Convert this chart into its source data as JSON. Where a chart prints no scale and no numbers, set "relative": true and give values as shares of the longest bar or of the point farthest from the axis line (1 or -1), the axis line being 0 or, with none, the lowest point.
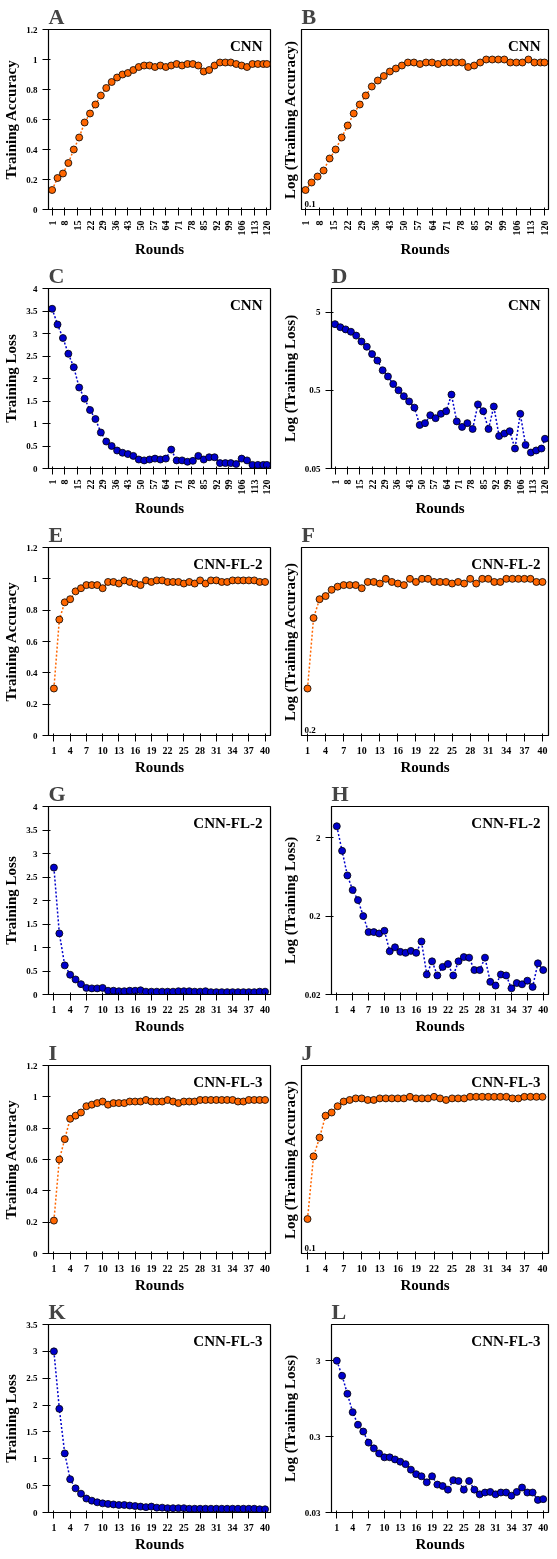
{
  "chart_data": [
    {
      "type": "line",
      "title": "CNN",
      "annotations": [
        "A"
      ],
      "xlabel": "Rounds",
      "ylabel": "Training Accuracy",
      "marker": "circle",
      "line_style": "dotted",
      "xlim": [
        -1,
        122
      ],
      "xticks": [
        1,
        8,
        15,
        22,
        29,
        36,
        43,
        50,
        57,
        64,
        71,
        78,
        85,
        92,
        99,
        106,
        113,
        120
      ],
      "ylim": [
        0,
        1.2
      ],
      "yticks": [
        0,
        0.2,
        0.4,
        0.6,
        0.8,
        1,
        1.2
      ],
      "series": [
        {
          "color": "#ff6600",
          "x": [
            1,
            4,
            7,
            10,
            13,
            16,
            19,
            22,
            25,
            28,
            31,
            34,
            37,
            40,
            43,
            46,
            49,
            52,
            55,
            58,
            61,
            64,
            67,
            70,
            73,
            76,
            79,
            82,
            85,
            88,
            91,
            94,
            97,
            100,
            103,
            106,
            109,
            112,
            115,
            118,
            120
          ],
          "values": [
            0.13,
            0.21,
            0.24,
            0.31,
            0.4,
            0.48,
            0.58,
            0.64,
            0.7,
            0.76,
            0.81,
            0.85,
            0.88,
            0.9,
            0.91,
            0.93,
            0.95,
            0.96,
            0.96,
            0.95,
            0.96,
            0.95,
            0.96,
            0.97,
            0.96,
            0.97,
            0.97,
            0.96,
            0.92,
            0.93,
            0.96,
            0.98,
            0.98,
            0.98,
            0.97,
            0.96,
            0.95,
            0.97,
            0.97,
            0.97,
            0.97
          ]
        }
      ]
    },
    {
      "type": "line",
      "title": "CNN",
      "annotations": [
        "B",
        "0.1"
      ],
      "xlabel": "Rounds",
      "ylabel": "Log (Training Accuracy)",
      "marker": "circle",
      "line_style": "dotted",
      "relative": true,
      "xlim": [
        -1,
        122
      ],
      "xticks": [
        1,
        8,
        15,
        22,
        29,
        36,
        43,
        50,
        57,
        64,
        71,
        78,
        85,
        92,
        99,
        106,
        113,
        120
      ],
      "series": [
        {
          "color": "#ff6600",
          "x": [
            1,
            4,
            7,
            10,
            13,
            16,
            19,
            22,
            25,
            28,
            31,
            34,
            37,
            40,
            43,
            46,
            49,
            52,
            55,
            58,
            61,
            64,
            67,
            70,
            73,
            76,
            79,
            82,
            85,
            88,
            91,
            94,
            97,
            100,
            103,
            106,
            109,
            112,
            115,
            118,
            120
          ],
          "values": [
            0.13,
            0.18,
            0.22,
            0.26,
            0.34,
            0.4,
            0.48,
            0.56,
            0.64,
            0.7,
            0.76,
            0.82,
            0.86,
            0.89,
            0.92,
            0.94,
            0.96,
            0.98,
            0.98,
            0.97,
            0.98,
            0.98,
            0.97,
            0.98,
            0.98,
            0.98,
            0.98,
            0.95,
            0.96,
            0.98,
            1.0,
            1.0,
            1.0,
            1.0,
            0.98,
            0.98,
            0.98,
            1.0,
            0.98,
            0.98,
            0.98
          ]
        }
      ]
    },
    {
      "type": "line",
      "title": "CNN",
      "annotations": [
        "C"
      ],
      "xlabel": "Rounds",
      "ylabel": "Training Loss",
      "marker": "circle",
      "line_style": "dotted",
      "xlim": [
        -1,
        122
      ],
      "xticks": [
        1,
        8,
        15,
        22,
        29,
        36,
        43,
        50,
        57,
        64,
        71,
        78,
        85,
        92,
        99,
        106,
        113,
        120
      ],
      "ylim": [
        0,
        4
      ],
      "yticks": [
        0,
        0.5,
        1,
        1.5,
        2,
        2.5,
        3,
        3.5,
        4
      ],
      "series": [
        {
          "color": "#0000cc",
          "x": [
            1,
            4,
            7,
            10,
            13,
            16,
            19,
            22,
            25,
            28,
            31,
            34,
            37,
            40,
            43,
            46,
            49,
            52,
            55,
            58,
            61,
            64,
            67,
            70,
            73,
            76,
            79,
            82,
            85,
            88,
            91,
            94,
            97,
            100,
            103,
            106,
            109,
            112,
            115,
            118,
            120
          ],
          "values": [
            3.55,
            3.2,
            2.9,
            2.55,
            2.25,
            1.8,
            1.55,
            1.3,
            1.1,
            0.8,
            0.6,
            0.5,
            0.4,
            0.35,
            0.32,
            0.28,
            0.2,
            0.18,
            0.2,
            0.22,
            0.2,
            0.22,
            0.42,
            0.18,
            0.18,
            0.15,
            0.17,
            0.28,
            0.2,
            0.25,
            0.25,
            0.12,
            0.12,
            0.12,
            0.1,
            0.22,
            0.18,
            0.08,
            0.08,
            0.08,
            0.08
          ]
        }
      ]
    },
    {
      "type": "line",
      "title": "CNN",
      "annotations": [
        "D"
      ],
      "xlabel": "Rounds",
      "ylabel": "Log (Training Loss)",
      "marker": "circle",
      "line_style": "dotted",
      "log": "y",
      "xlim": [
        -1,
        122
      ],
      "xticks": [
        1,
        8,
        15,
        22,
        29,
        36,
        43,
        50,
        57,
        64,
        71,
        78,
        85,
        92,
        99,
        106,
        113,
        120
      ],
      "ylim": [
        0.05,
        10
      ],
      "yticks": [
        0.05,
        0.5,
        5
      ],
      "series": [
        {
          "color": "#0000cc",
          "x": [
            1,
            4,
            7,
            10,
            13,
            16,
            19,
            22,
            25,
            28,
            31,
            34,
            37,
            40,
            43,
            46,
            49,
            52,
            55,
            58,
            61,
            64,
            67,
            70,
            73,
            76,
            79,
            82,
            85,
            88,
            91,
            94,
            97,
            100,
            103,
            106,
            109,
            112,
            115,
            118,
            120
          ],
          "values": [
            3.5,
            3.2,
            3.0,
            2.8,
            2.5,
            2.1,
            1.8,
            1.45,
            1.2,
            0.9,
            0.75,
            0.6,
            0.5,
            0.42,
            0.36,
            0.3,
            0.18,
            0.19,
            0.24,
            0.22,
            0.25,
            0.27,
            0.44,
            0.2,
            0.17,
            0.19,
            0.16,
            0.33,
            0.27,
            0.16,
            0.31,
            0.13,
            0.14,
            0.15,
            0.09,
            0.25,
            0.1,
            0.08,
            0.085,
            0.09,
            0.12
          ]
        }
      ]
    },
    {
      "type": "line",
      "title": "CNN-FL-2",
      "annotations": [
        "E"
      ],
      "xlabel": "Rounds",
      "ylabel": "Training Accuracy",
      "marker": "circle",
      "line_style": "dotted",
      "xlim": [
        0,
        41
      ],
      "xticks": [
        1,
        4,
        7,
        10,
        13,
        16,
        19,
        22,
        25,
        28,
        31,
        34,
        37,
        40
      ],
      "ylim": [
        0,
        1.2
      ],
      "yticks": [
        0,
        0.2,
        0.4,
        0.6,
        0.8,
        1,
        1.2
      ],
      "series": [
        {
          "color": "#ff6600",
          "x": [
            1,
            2,
            3,
            4,
            5,
            6,
            7,
            8,
            9,
            10,
            11,
            12,
            13,
            14,
            15,
            16,
            17,
            18,
            19,
            20,
            21,
            22,
            23,
            24,
            25,
            26,
            27,
            28,
            29,
            30,
            31,
            32,
            33,
            34,
            35,
            36,
            37,
            38,
            39,
            40
          ],
          "values": [
            0.3,
            0.74,
            0.85,
            0.87,
            0.92,
            0.94,
            0.96,
            0.96,
            0.96,
            0.94,
            0.98,
            0.98,
            0.97,
            0.99,
            0.98,
            0.97,
            0.96,
            0.99,
            0.98,
            0.99,
            0.99,
            0.98,
            0.98,
            0.98,
            0.97,
            0.98,
            0.97,
            0.99,
            0.97,
            0.99,
            0.99,
            0.98,
            0.98,
            0.99,
            0.99,
            0.99,
            0.99,
            0.99,
            0.98,
            0.98
          ]
        }
      ]
    },
    {
      "type": "line",
      "title": "CNN-FL-2",
      "annotations": [
        "F",
        "0.2"
      ],
      "xlabel": "Rounds",
      "ylabel": "Log (Training Accuracy)",
      "marker": "circle",
      "line_style": "dotted",
      "relative": true,
      "xlim": [
        0,
        41
      ],
      "xticks": [
        1,
        4,
        7,
        10,
        13,
        16,
        19,
        22,
        25,
        28,
        31,
        34,
        37,
        40
      ],
      "series": [
        {
          "color": "#ff6600",
          "x": [
            1,
            2,
            3,
            4,
            5,
            6,
            7,
            8,
            9,
            10,
            11,
            12,
            13,
            14,
            15,
            16,
            17,
            18,
            19,
            20,
            21,
            22,
            23,
            24,
            25,
            26,
            27,
            28,
            29,
            30,
            31,
            32,
            33,
            34,
            35,
            36,
            37,
            38,
            39,
            40
          ],
          "values": [
            0.3,
            0.75,
            0.87,
            0.89,
            0.93,
            0.95,
            0.96,
            0.96,
            0.96,
            0.94,
            0.98,
            0.98,
            0.97,
            1.0,
            0.98,
            0.97,
            0.96,
            1.0,
            0.98,
            1.0,
            1.0,
            0.98,
            0.98,
            0.98,
            0.97,
            0.98,
            0.97,
            1.0,
            0.97,
            1.0,
            1.0,
            0.98,
            0.98,
            1.0,
            1.0,
            1.0,
            1.0,
            1.0,
            0.98,
            0.98
          ]
        }
      ]
    },
    {
      "type": "line",
      "title": "CNN-FL-2",
      "annotations": [
        "G"
      ],
      "xlabel": "Rounds",
      "ylabel": "Training Loss",
      "marker": "circle",
      "line_style": "dotted",
      "xlim": [
        0,
        41
      ],
      "xticks": [
        1,
        4,
        7,
        10,
        13,
        16,
        19,
        22,
        25,
        28,
        31,
        34,
        37,
        40
      ],
      "ylim": [
        0,
        4
      ],
      "yticks": [
        0,
        0.5,
        1,
        1.5,
        2,
        2.5,
        3,
        3.5,
        4
      ],
      "series": [
        {
          "color": "#0000cc",
          "x": [
            1,
            2,
            3,
            4,
            5,
            6,
            7,
            8,
            9,
            10,
            11,
            12,
            13,
            14,
            15,
            16,
            17,
            18,
            19,
            20,
            21,
            22,
            23,
            24,
            25,
            26,
            27,
            28,
            29,
            30,
            31,
            32,
            33,
            34,
            35,
            36,
            37,
            38,
            39,
            40
          ],
          "values": [
            2.7,
            1.3,
            0.62,
            0.42,
            0.32,
            0.22,
            0.14,
            0.13,
            0.13,
            0.14,
            0.08,
            0.08,
            0.07,
            0.07,
            0.08,
            0.08,
            0.09,
            0.06,
            0.06,
            0.06,
            0.06,
            0.06,
            0.06,
            0.07,
            0.07,
            0.07,
            0.06,
            0.06,
            0.07,
            0.05,
            0.05,
            0.05,
            0.05,
            0.05,
            0.05,
            0.05,
            0.05,
            0.05,
            0.06,
            0.06
          ]
        }
      ]
    },
    {
      "type": "line",
      "title": "CNN-FL-2",
      "annotations": [
        "H"
      ],
      "xlabel": "Rounds",
      "ylabel": "Log (Training Loss)",
      "marker": "circle",
      "line_style": "dotted",
      "log": "y",
      "xlim": [
        0,
        41
      ],
      "xticks": [
        1,
        4,
        7,
        10,
        13,
        16,
        19,
        22,
        25,
        28,
        31,
        34,
        37,
        40
      ],
      "ylim": [
        0.02,
        5
      ],
      "yticks": [
        0.02,
        0.2,
        2
      ],
      "series": [
        {
          "color": "#0000cc",
          "x": [
            1,
            2,
            3,
            4,
            5,
            6,
            7,
            8,
            9,
            10,
            11,
            12,
            13,
            14,
            15,
            16,
            17,
            18,
            19,
            20,
            21,
            22,
            23,
            24,
            25,
            26,
            27,
            28,
            29,
            30,
            31,
            32,
            33,
            34,
            35,
            36,
            37,
            38,
            39,
            40
          ],
          "values": [
            2.8,
            1.36,
            0.66,
            0.43,
            0.32,
            0.2,
            0.125,
            0.125,
            0.12,
            0.13,
            0.071,
            0.08,
            0.07,
            0.068,
            0.072,
            0.068,
            0.095,
            0.036,
            0.053,
            0.035,
            0.045,
            0.049,
            0.035,
            0.053,
            0.06,
            0.059,
            0.041,
            0.041,
            0.059,
            0.029,
            0.026,
            0.036,
            0.035,
            0.024,
            0.028,
            0.027,
            0.03,
            0.025,
            0.05,
            0.041
          ]
        }
      ]
    },
    {
      "type": "line",
      "title": "CNN-FL-3",
      "annotations": [
        "I"
      ],
      "xlabel": "Rounds",
      "ylabel": "Training Accuracy",
      "marker": "circle",
      "line_style": "dotted",
      "xlim": [
        0,
        41
      ],
      "xticks": [
        1,
        4,
        7,
        10,
        13,
        16,
        19,
        22,
        25,
        28,
        31,
        34,
        37,
        40
      ],
      "ylim": [
        0,
        1.2
      ],
      "yticks": [
        0,
        0.2,
        0.4,
        0.6,
        0.8,
        1,
        1.2
      ],
      "series": [
        {
          "color": "#ff6600",
          "x": [
            1,
            2,
            3,
            4,
            5,
            6,
            7,
            8,
            9,
            10,
            11,
            12,
            13,
            14,
            15,
            16,
            17,
            18,
            19,
            20,
            21,
            22,
            23,
            24,
            25,
            26,
            27,
            28,
            29,
            30,
            31,
            32,
            33,
            34,
            35,
            36,
            37,
            38,
            39,
            40
          ],
          "values": [
            0.21,
            0.6,
            0.73,
            0.86,
            0.88,
            0.9,
            0.94,
            0.95,
            0.96,
            0.97,
            0.95,
            0.96,
            0.96,
            0.96,
            0.97,
            0.97,
            0.97,
            0.98,
            0.97,
            0.97,
            0.97,
            0.98,
            0.97,
            0.96,
            0.97,
            0.97,
            0.97,
            0.98,
            0.98,
            0.98,
            0.98,
            0.98,
            0.98,
            0.98,
            0.97,
            0.97,
            0.98,
            0.98,
            0.98,
            0.98
          ]
        }
      ]
    },
    {
      "type": "line",
      "title": "CNN-FL-3",
      "annotations": [
        "J",
        "0.1"
      ],
      "xlabel": "Rounds",
      "ylabel": "Log (Training Accuracy)",
      "marker": "circle",
      "line_style": "dotted",
      "relative": true,
      "xlim": [
        0,
        41
      ],
      "xticks": [
        1,
        4,
        7,
        10,
        13,
        16,
        19,
        22,
        25,
        28,
        31,
        34,
        37,
        40
      ],
      "series": [
        {
          "color": "#ff6600",
          "x": [
            1,
            2,
            3,
            4,
            5,
            6,
            7,
            8,
            9,
            10,
            11,
            12,
            13,
            14,
            15,
            16,
            17,
            18,
            19,
            20,
            21,
            22,
            23,
            24,
            25,
            26,
            27,
            28,
            29,
            30,
            31,
            32,
            33,
            34,
            35,
            36,
            37,
            38,
            39,
            40
          ],
          "values": [
            0.22,
            0.62,
            0.74,
            0.88,
            0.9,
            0.94,
            0.97,
            0.98,
            0.99,
            0.99,
            0.98,
            0.98,
            0.99,
            0.99,
            0.99,
            0.99,
            0.99,
            1.0,
            0.99,
            0.99,
            0.99,
            1.0,
            0.99,
            0.98,
            0.99,
            0.99,
            0.99,
            1.0,
            1.0,
            1.0,
            1.0,
            1.0,
            1.0,
            1.0,
            0.99,
            0.99,
            1.0,
            1.0,
            1.0,
            1.0
          ]
        }
      ]
    },
    {
      "type": "line",
      "title": "CNN-FL-3",
      "annotations": [
        "K"
      ],
      "xlabel": "Rounds",
      "ylabel": "Training Loss",
      "marker": "circle",
      "line_style": "dotted",
      "xlim": [
        0,
        41
      ],
      "xticks": [
        1,
        4,
        7,
        10,
        13,
        16,
        19,
        22,
        25,
        28,
        31,
        34,
        37,
        40
      ],
      "ylim": [
        0,
        3.5
      ],
      "yticks": [
        0,
        0.5,
        1,
        1.5,
        2,
        2.5,
        3,
        3.5
      ],
      "series": [
        {
          "color": "#0000cc",
          "x": [
            1,
            2,
            3,
            4,
            5,
            6,
            7,
            8,
            9,
            10,
            11,
            12,
            13,
            14,
            15,
            16,
            17,
            18,
            19,
            20,
            21,
            22,
            23,
            24,
            25,
            26,
            27,
            28,
            29,
            30,
            31,
            32,
            33,
            34,
            35,
            36,
            37,
            38,
            39,
            40
          ],
          "values": [
            3.0,
            1.93,
            1.1,
            0.62,
            0.45,
            0.35,
            0.26,
            0.22,
            0.19,
            0.17,
            0.16,
            0.15,
            0.14,
            0.14,
            0.13,
            0.12,
            0.11,
            0.1,
            0.11,
            0.09,
            0.09,
            0.08,
            0.08,
            0.08,
            0.08,
            0.07,
            0.07,
            0.07,
            0.07,
            0.07,
            0.07,
            0.07,
            0.07,
            0.07,
            0.07,
            0.07,
            0.07,
            0.07,
            0.06,
            0.06
          ]
        }
      ]
    },
    {
      "type": "line",
      "title": "CNN-FL-3",
      "annotations": [
        "L"
      ],
      "xlabel": "Rounds",
      "ylabel": "Log (Training Loss)",
      "marker": "circle",
      "line_style": "dotted",
      "log": "y",
      "xlim": [
        0,
        41
      ],
      "xticks": [
        1,
        4,
        7,
        10,
        13,
        16,
        19,
        22,
        25,
        28,
        31,
        34,
        37,
        40
      ],
      "ylim": [
        0.03,
        9
      ],
      "yticks": [
        0.03,
        0.3,
        3
      ],
      "series": [
        {
          "color": "#0000cc",
          "x": [
            1,
            2,
            3,
            4,
            5,
            6,
            7,
            8,
            9,
            10,
            11,
            12,
            13,
            14,
            15,
            16,
            17,
            18,
            19,
            20,
            21,
            22,
            23,
            24,
            25,
            26,
            27,
            28,
            29,
            30,
            31,
            32,
            33,
            34,
            35,
            36,
            37,
            38,
            39,
            40
          ],
          "values": [
            3.0,
            1.9,
            1.1,
            0.63,
            0.43,
            0.35,
            0.25,
            0.21,
            0.18,
            0.16,
            0.16,
            0.15,
            0.14,
            0.13,
            0.11,
            0.096,
            0.09,
            0.075,
            0.09,
            0.07,
            0.067,
            0.06,
            0.08,
            0.078,
            0.06,
            0.078,
            0.06,
            0.052,
            0.055,
            0.056,
            0.052,
            0.055,
            0.055,
            0.05,
            0.056,
            0.064,
            0.055,
            0.055,
            0.044,
            0.045
          ]
        }
      ]
    }
  ]
}
